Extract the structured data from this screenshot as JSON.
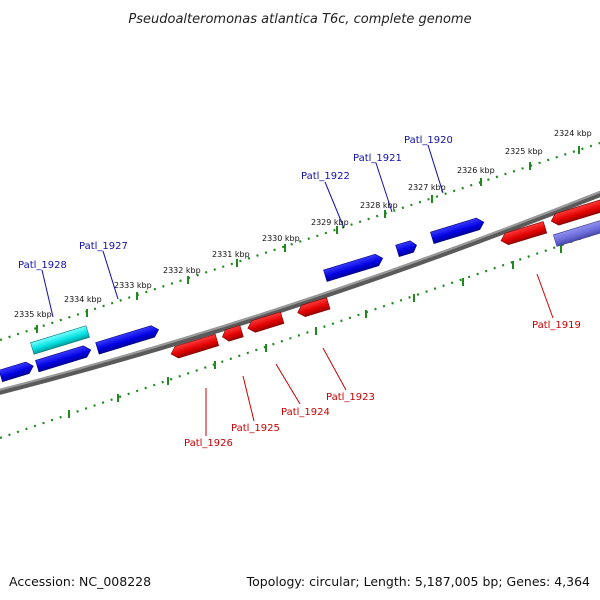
{
  "title": "Pseudoalteromonas atlantica T6c, complete genome",
  "footer": {
    "accession": "Accession: NC_008228",
    "summary": "Topology: circular; Length: 5,187,005 bp; Genes: 4,364"
  },
  "colors": {
    "forward_gene": "#0000e0",
    "reverse_gene": "#e00000",
    "highlight_gene": "#00e0e0",
    "other_gene": "#6a6ad8",
    "backbone": "#7a7a7a",
    "tick": "#1e8a1e",
    "forward_label": "#1010aa",
    "reverse_label": "#cc0000"
  },
  "scale_ticks": [
    "2335 kbp",
    "2334 kbp",
    "2333 kbp",
    "2332 kbp",
    "2331 kbp",
    "2330 kbp",
    "2329 kbp",
    "2328 kbp",
    "2327 kbp",
    "2326 kbp",
    "2325 kbp",
    "2324 kbp"
  ],
  "forward_genes": [
    "Patl_1928",
    "Patl_1927",
    "Patl_1922",
    "Patl_1921",
    "Patl_1920"
  ],
  "reverse_genes": [
    "Patl_1926",
    "Patl_1925",
    "Patl_1924",
    "Patl_1923",
    "Patl_1919"
  ]
}
